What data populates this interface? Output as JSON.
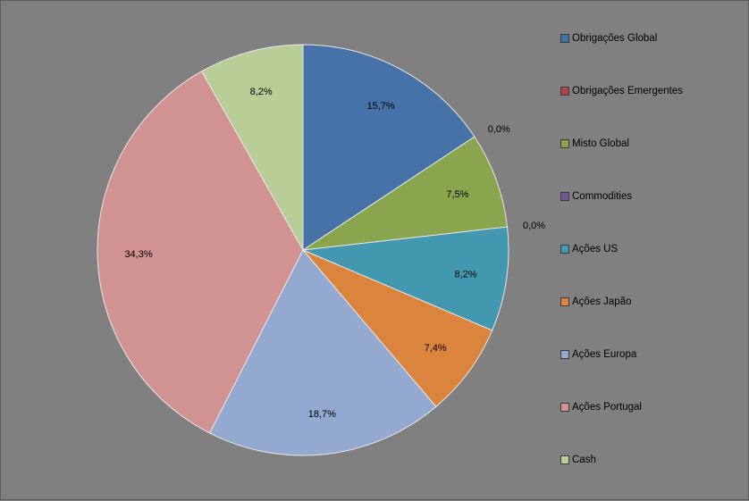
{
  "chart_data": {
    "type": "pie",
    "title": "",
    "start_angle_deg": 0,
    "direction": "clockwise",
    "legend_position": "right",
    "slices": [
      {
        "label": "Obrigações Global",
        "value": 15.7,
        "display": "15,7%",
        "color": "#4572a7"
      },
      {
        "label": "Obrigações Emergentes",
        "value": 0.0,
        "display": "0,0%",
        "color": "#aa4643"
      },
      {
        "label": "Misto Global",
        "value": 7.5,
        "display": "7,5%",
        "color": "#89a54e"
      },
      {
        "label": "Commodities",
        "value": 0.0,
        "display": "0,0%",
        "color": "#71588f"
      },
      {
        "label": "Ações US",
        "value": 8.2,
        "display": "8,2%",
        "color": "#4198af"
      },
      {
        "label": "Ações Japão",
        "value": 7.4,
        "display": "7,4%",
        "color": "#db843d"
      },
      {
        "label": "Ações Europa",
        "value": 18.7,
        "display": "18,7%",
        "color": "#93a9cf"
      },
      {
        "label": "Ações Portugal",
        "value": 34.3,
        "display": "34,3%",
        "color": "#d19392"
      },
      {
        "label": "Cash",
        "value": 8.2,
        "display": "8,2%",
        "color": "#b9cd96"
      }
    ]
  }
}
